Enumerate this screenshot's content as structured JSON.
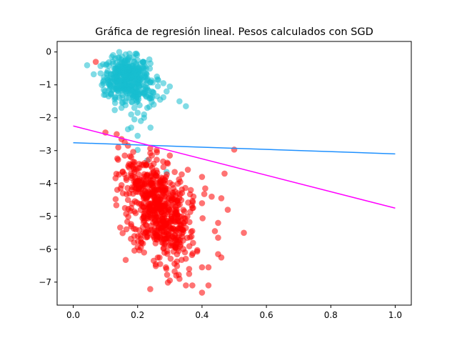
{
  "chart_data": {
    "type": "scatter",
    "title": "Gráfica de regresión lineal. Pesos calculados con SGD",
    "xlabel": "",
    "ylabel": "",
    "xlim": [
      -0.05,
      1.05
    ],
    "ylim": [
      -7.7,
      0.32
    ],
    "grid": false,
    "x_ticks": [
      0.0,
      0.2,
      0.4,
      0.6,
      0.8,
      1.0
    ],
    "x_tick_labels": [
      "0.0",
      "0.2",
      "0.4",
      "0.6",
      "0.8",
      "1.0"
    ],
    "y_ticks": [
      0,
      -1,
      -2,
      -3,
      -4,
      -5,
      -6,
      -7
    ],
    "y_tick_labels": [
      "0",
      "−1",
      "−2",
      "−3",
      "−4",
      "−5",
      "−6",
      "−7"
    ],
    "scatter_series": [
      {
        "name": "class-cyan",
        "color": "#17becf",
        "opacity": 0.55,
        "clusters": [
          {
            "cx": 0.165,
            "cy": -0.75,
            "sx": 0.035,
            "sy": 0.3,
            "n": 340
          },
          {
            "cx": 0.2,
            "cy": -1.25,
            "sx": 0.04,
            "sy": 0.25,
            "n": 70
          }
        ],
        "points": [
          [
            0.085,
            -0.65
          ],
          [
            0.095,
            -1.15
          ],
          [
            0.12,
            -0.15
          ],
          [
            0.24,
            -0.35
          ],
          [
            0.26,
            -0.75
          ],
          [
            0.28,
            -0.95
          ],
          [
            0.3,
            -1.05
          ],
          [
            0.29,
            -1.2
          ],
          [
            0.28,
            -1.38
          ],
          [
            0.33,
            -1.5
          ],
          [
            0.35,
            -1.65
          ],
          [
            0.27,
            -1.45
          ],
          [
            0.25,
            -1.6
          ],
          [
            0.23,
            -1.7
          ],
          [
            0.2,
            -1.5
          ],
          [
            0.19,
            -1.7
          ],
          [
            0.18,
            -1.9
          ],
          [
            0.2,
            -1.85
          ],
          [
            0.21,
            -2.1
          ],
          [
            0.22,
            -2.0
          ],
          [
            0.19,
            -2.05
          ],
          [
            0.18,
            -2.3
          ],
          [
            0.17,
            -2.35
          ],
          [
            0.24,
            -2.3
          ],
          [
            0.2,
            -2.55
          ],
          [
            0.15,
            -1.7
          ],
          [
            0.13,
            -1.55
          ],
          [
            0.11,
            -1.35
          ],
          [
            0.1,
            -1.3
          ],
          [
            0.14,
            -1.25
          ],
          [
            0.21,
            -0.55
          ],
          [
            0.19,
            -0.3
          ],
          [
            0.22,
            -0.5
          ],
          [
            0.13,
            -0.2
          ],
          [
            0.17,
            -0.2
          ],
          [
            0.2,
            -0.25
          ],
          [
            0.22,
            -1.9
          ],
          [
            0.2,
            -2.98
          ],
          [
            0.23,
            -3.3
          ],
          [
            0.29,
            -3.65
          ]
        ]
      },
      {
        "name": "class-red",
        "color": "#ff0000",
        "opacity": 0.55,
        "clusters": [
          {
            "cx": 0.265,
            "cy": -4.8,
            "sx": 0.045,
            "sy": 0.6,
            "n": 400
          },
          {
            "cx": 0.21,
            "cy": -3.9,
            "sx": 0.035,
            "sy": 0.45,
            "n": 110
          },
          {
            "cx": 0.31,
            "cy": -5.6,
            "sx": 0.035,
            "sy": 0.45,
            "n": 110
          }
        ],
        "points": [
          [
            0.07,
            -0.3
          ],
          [
            0.1,
            -2.45
          ],
          [
            0.135,
            -2.5
          ],
          [
            0.15,
            -2.65
          ],
          [
            0.16,
            -2.75
          ],
          [
            0.17,
            -2.85
          ],
          [
            0.14,
            -2.9
          ],
          [
            0.5,
            -2.97
          ],
          [
            0.47,
            -3.7
          ],
          [
            0.4,
            -3.8
          ],
          [
            0.41,
            -4.15
          ],
          [
            0.43,
            -4.4
          ],
          [
            0.46,
            -4.45
          ],
          [
            0.48,
            -4.8
          ],
          [
            0.53,
            -5.5
          ],
          [
            0.45,
            -5.2
          ],
          [
            0.44,
            -5.45
          ],
          [
            0.45,
            -5.65
          ],
          [
            0.46,
            -6.25
          ],
          [
            0.45,
            -6.15
          ],
          [
            0.42,
            -6.55
          ],
          [
            0.4,
            -6.55
          ],
          [
            0.36,
            -6.6
          ],
          [
            0.36,
            -6.75
          ],
          [
            0.32,
            -6.8
          ],
          [
            0.3,
            -6.95
          ],
          [
            0.33,
            -6.9
          ],
          [
            0.35,
            -7.1
          ],
          [
            0.37,
            -7.1
          ],
          [
            0.4,
            -7.32
          ],
          [
            0.42,
            -7.1
          ],
          [
            0.27,
            -6.45
          ],
          [
            0.25,
            -6.35
          ],
          [
            0.22,
            -6.1
          ],
          [
            0.21,
            -5.95
          ],
          [
            0.19,
            -5.6
          ],
          [
            0.18,
            -5.3
          ],
          [
            0.19,
            -4.85
          ],
          [
            0.17,
            -4.5
          ],
          [
            0.15,
            -4.05
          ],
          [
            0.16,
            -3.15
          ],
          [
            0.19,
            -3.35
          ],
          [
            0.26,
            -3.05
          ],
          [
            0.3,
            -3.15
          ],
          [
            0.28,
            -3.5
          ],
          [
            0.25,
            -3.4
          ],
          [
            0.4,
            -4.6
          ],
          [
            0.37,
            -4.75
          ]
        ]
      }
    ],
    "line_series": [
      {
        "name": "regression-line-blue",
        "color": "#1e90ff",
        "x": [
          0.0,
          1.0
        ],
        "y": [
          -2.76,
          -3.1
        ]
      },
      {
        "name": "regression-line-magenta",
        "color": "#ff00ff",
        "x": [
          0.0,
          1.0
        ],
        "y": [
          -2.25,
          -4.75
        ]
      }
    ]
  }
}
